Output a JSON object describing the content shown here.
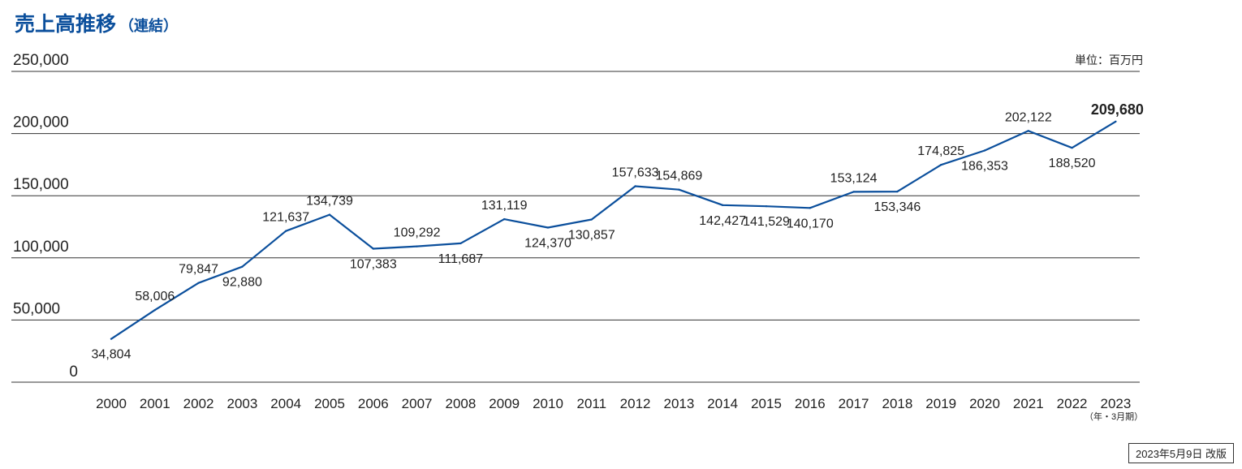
{
  "title": {
    "main": "売上高推移",
    "sub": "（連結）"
  },
  "unit_label": "単位：百万円",
  "year_note": "（年・3月期）",
  "revised_note": "2023年5月9日 改版",
  "colors": {
    "line": "#0b4f9c",
    "title": "#0b4f9c",
    "grid": "#333333"
  },
  "chart_data": {
    "type": "line",
    "title": "売上高推移（連結）",
    "xlabel": "",
    "ylabel": "",
    "ylim": [
      0,
      250000
    ],
    "yticks": [
      0,
      50000,
      100000,
      150000,
      200000,
      250000
    ],
    "ytick_labels": [
      "0",
      "50,000",
      "100,000",
      "150,000",
      "200,000",
      "250,000"
    ],
    "categories": [
      "2000",
      "2001",
      "2002",
      "2003",
      "2004",
      "2005",
      "2006",
      "2007",
      "2008",
      "2009",
      "2010",
      "2011",
      "2012",
      "2013",
      "2014",
      "2015",
      "2016",
      "2017",
      "2018",
      "2019",
      "2020",
      "2021",
      "2022",
      "2023"
    ],
    "series": [
      {
        "values": [
          34804,
          58006,
          79847,
          92880,
          121637,
          134739,
          107383,
          109292,
          111687,
          131119,
          124370,
          130857,
          157633,
          154869,
          142427,
          141529,
          140170,
          153124,
          153346,
          174825,
          186353,
          202122,
          188520,
          209680
        ],
        "labels": [
          "34,804",
          "58,006",
          "79,847",
          "92,880",
          "121,637",
          "134,739",
          "107,383",
          "109,292",
          "111,687",
          "131,119",
          "124,370",
          "130,857",
          "157,633",
          "154,869",
          "142,427",
          "141,529",
          "140,170",
          "153,124",
          "153,346",
          "174,825",
          "186,353",
          "202,122",
          "188,520",
          "209,680"
        ],
        "label_positions": [
          "below",
          "above",
          "above",
          "below",
          "above",
          "above",
          "below",
          "above",
          "below",
          "above",
          "below",
          "below",
          "above",
          "above",
          "below",
          "below",
          "below",
          "above",
          "below",
          "above",
          "below",
          "above",
          "below",
          "above"
        ],
        "highlight_last": true
      }
    ],
    "grid": true,
    "legend": "none"
  }
}
